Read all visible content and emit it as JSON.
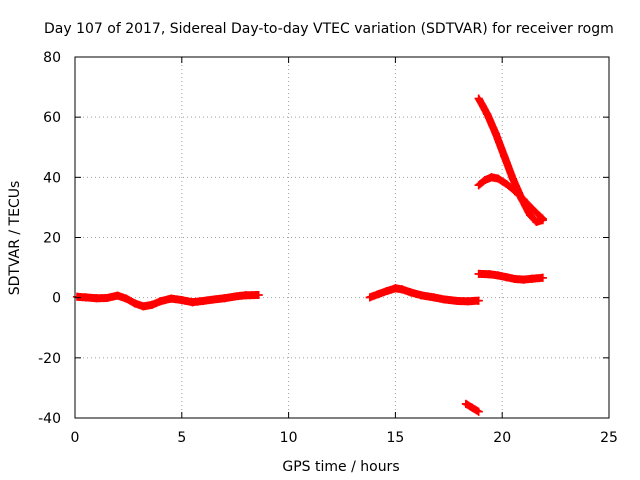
{
  "chart_data": {
    "type": "scatter",
    "title": "Day 107 of 2017, Sidereal Day-to-day VTEC variation (SDTVAR) for receiver rogm",
    "xlabel": "GPS time / hours",
    "ylabel": "SDTVAR / TECUs",
    "xlim": [
      0,
      25
    ],
    "ylim": [
      -40,
      80
    ],
    "xticks": [
      0,
      5,
      10,
      15,
      20,
      25
    ],
    "xtick_labels": [
      "0",
      "5",
      "10",
      "15",
      "20",
      "25"
    ],
    "yticks": [
      -40,
      -20,
      0,
      20,
      40,
      60,
      80
    ],
    "ytick_labels": [
      "-40",
      "-20",
      "0",
      "20",
      "40",
      "60",
      "80"
    ],
    "grid": true,
    "legend": "none",
    "marker_color": "#ff0000",
    "series": [
      {
        "points": [
          [
            0.1,
            0.3
          ],
          [
            0.5,
            0.1
          ],
          [
            1.0,
            -0.2
          ],
          [
            1.5,
            -0.1
          ],
          [
            2.0,
            0.7
          ],
          [
            2.4,
            -0.3
          ],
          [
            2.8,
            -1.9
          ],
          [
            3.2,
            -2.9
          ],
          [
            3.6,
            -2.4
          ],
          [
            4.0,
            -1.2
          ],
          [
            4.5,
            -0.3
          ],
          [
            5.0,
            -0.8
          ],
          [
            5.5,
            -1.5
          ],
          [
            6.0,
            -1.1
          ],
          [
            6.5,
            -0.6
          ],
          [
            7.0,
            -0.2
          ],
          [
            7.5,
            0.4
          ],
          [
            8.0,
            0.8
          ],
          [
            8.6,
            0.9
          ]
        ]
      },
      {
        "points": [
          [
            13.8,
            0.1
          ],
          [
            14.2,
            1.2
          ],
          [
            14.6,
            2.2
          ],
          [
            15.0,
            3.1
          ],
          [
            15.3,
            2.8
          ],
          [
            15.7,
            1.8
          ],
          [
            16.2,
            0.8
          ],
          [
            16.8,
            0.1
          ],
          [
            17.3,
            -0.6
          ],
          [
            17.9,
            -1.1
          ],
          [
            18.4,
            -1.2
          ],
          [
            18.9,
            -1.0
          ]
        ]
      },
      {
        "points": [
          [
            18.3,
            -35.3
          ],
          [
            18.6,
            -36.6
          ],
          [
            18.9,
            -37.9
          ]
        ]
      },
      {
        "points": [
          [
            18.9,
            66.2
          ],
          [
            19.3,
            61.0
          ],
          [
            19.7,
            54.5
          ],
          [
            20.1,
            47.0
          ],
          [
            20.5,
            39.5
          ],
          [
            20.9,
            33.0
          ],
          [
            21.3,
            27.5
          ],
          [
            21.6,
            25.2
          ],
          [
            21.9,
            25.8
          ]
        ]
      },
      {
        "points": [
          [
            18.9,
            37.4
          ],
          [
            19.2,
            39.1
          ],
          [
            19.5,
            40.0
          ],
          [
            19.8,
            39.6
          ],
          [
            20.2,
            37.8
          ],
          [
            20.6,
            35.4
          ],
          [
            21.0,
            32.6
          ],
          [
            21.4,
            29.6
          ],
          [
            21.9,
            26.2
          ]
        ]
      },
      {
        "points": [
          [
            18.9,
            7.9
          ],
          [
            19.4,
            7.8
          ],
          [
            19.8,
            7.4
          ],
          [
            20.2,
            6.8
          ],
          [
            20.6,
            6.2
          ],
          [
            21.0,
            6.0
          ],
          [
            21.4,
            6.3
          ],
          [
            21.9,
            6.6
          ]
        ]
      }
    ]
  }
}
